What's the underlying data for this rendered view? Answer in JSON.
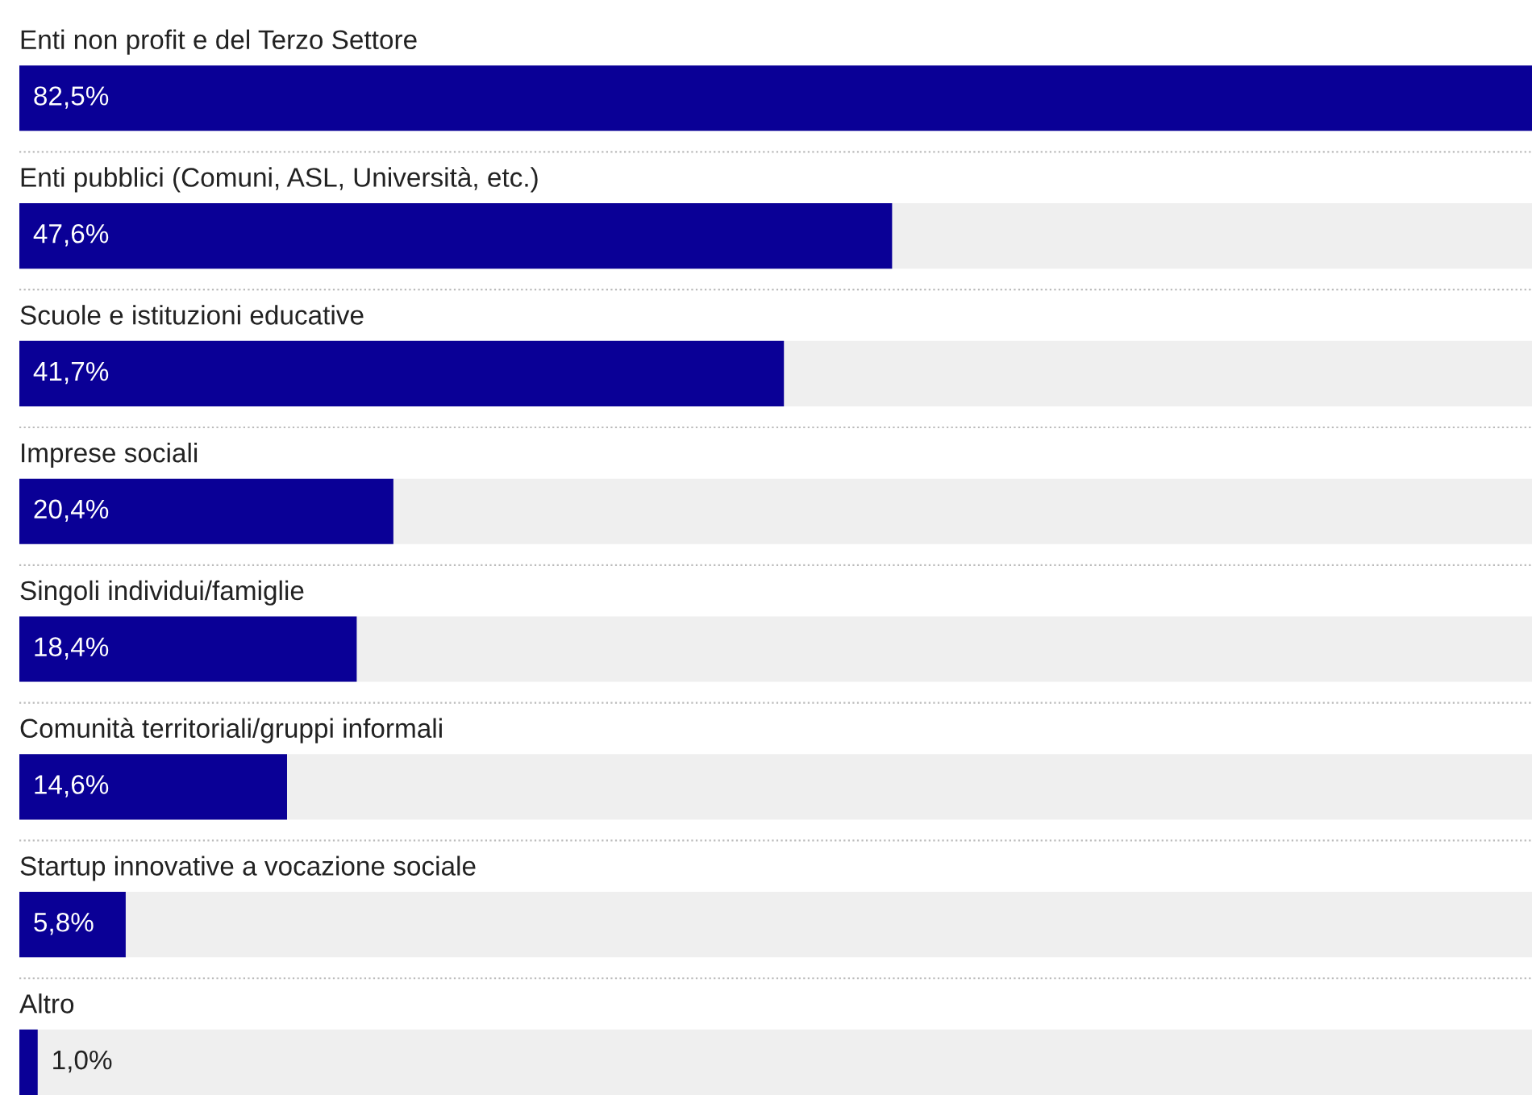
{
  "chart_data": {
    "type": "bar",
    "orientation": "horizontal",
    "categories": [
      "Enti non profit e del Terzo Settore",
      "Enti pubblici (Comuni, ASL, Università, etc.)",
      "Scuole e istituzioni educative",
      "Imprese sociali",
      "Singoli individui/famiglie",
      "Comunità territoriali/gruppi informali",
      "Startup innovative a vocazione sociale",
      "Altro"
    ],
    "values": [
      82.5,
      47.6,
      41.7,
      20.4,
      18.4,
      14.6,
      5.8,
      1.0
    ],
    "value_labels": [
      "82,5%",
      "47,6%",
      "41,7%",
      "20,4%",
      "18,4%",
      "14,6%",
      "5,8%",
      "1,0%"
    ],
    "color": "#0a0096"
  }
}
